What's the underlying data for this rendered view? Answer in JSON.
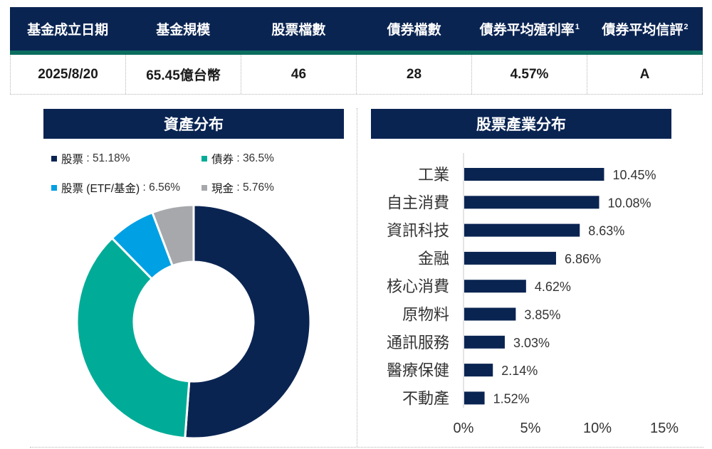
{
  "summary": {
    "headers": [
      {
        "label": "基金成立日期",
        "sup": ""
      },
      {
        "label": "基金規模",
        "sup": ""
      },
      {
        "label": "股票檔數",
        "sup": ""
      },
      {
        "label": "債券檔數",
        "sup": ""
      },
      {
        "label": "債券平均殖利率",
        "sup": "1"
      },
      {
        "label": "債券平均信評",
        "sup": "2"
      }
    ],
    "values": [
      "2025/8/20",
      "65.45億台幣",
      "46",
      "28",
      "4.57%",
      "A"
    ]
  },
  "asset_panel": {
    "title": "資產分布"
  },
  "industry_panel": {
    "title": "股票產業分布"
  },
  "chart_data": [
    {
      "type": "pie",
      "title": "資產分布",
      "donut": true,
      "legend_position": "top",
      "slices": [
        {
          "label": "股票",
          "value": 51.18,
          "display": "51.18%",
          "color": "#0a2452"
        },
        {
          "label": "債券",
          "value": 36.5,
          "display": "36.5%",
          "color": "#00ac97"
        },
        {
          "label": "股票 (ETF/基金)",
          "value": 6.56,
          "display": "6.56%",
          "color": "#00a0e4"
        },
        {
          "label": "現金",
          "value": 5.76,
          "display": "5.76%",
          "color": "#a6a8ab"
        }
      ]
    },
    {
      "type": "bar",
      "orientation": "horizontal",
      "title": "股票產業分布",
      "categories": [
        "工業",
        "自主消費",
        "資訊科技",
        "金融",
        "核心消費",
        "原物料",
        "通訊服務",
        "醫療保健",
        "不動產"
      ],
      "values": [
        10.45,
        10.08,
        8.63,
        6.86,
        4.62,
        3.85,
        3.03,
        2.14,
        1.52
      ],
      "value_labels": [
        "10.45%",
        "10.08%",
        "8.63%",
        "6.86%",
        "4.62%",
        "3.85%",
        "3.03%",
        "2.14%",
        "1.52%"
      ],
      "xlim": [
        0,
        15
      ],
      "xticks": [
        0,
        5,
        10,
        15
      ],
      "xtick_labels": [
        "0%",
        "5%",
        "10%",
        "15%"
      ],
      "bar_color": "#0a2452",
      "grid": false
    }
  ]
}
